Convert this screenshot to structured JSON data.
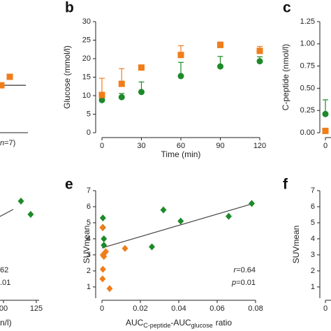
{
  "chart_data": [
    {
      "type": "scatter",
      "annotations": [
        [
          "n",
          "=7)"
        ]
      ],
      "xlim": [
        0,
        120
      ],
      "ylim": [
        0,
        30
      ],
      "reference_line": 12.8,
      "series": [
        {
          "color": "#f07d1a",
          "marker": "square",
          "x": [
            101.4,
            107.8
          ],
          "values": [
            12.8,
            15.1
          ]
        }
      ]
    },
    {
      "type": "errorbar",
      "letter": "b",
      "y_label": "Glucose (mmol/l)",
      "x_label": "Time (min)",
      "xlim": [
        0,
        120
      ],
      "ylim": [
        0,
        30
      ],
      "xticks": [
        0,
        30,
        60,
        90,
        120
      ],
      "yticks": [
        0,
        5,
        10,
        15,
        20,
        25,
        30
      ],
      "series": [
        {
          "color": "#1d8a2a",
          "marker": "circle",
          "x": [
            0,
            15,
            30,
            60,
            90,
            120
          ],
          "values": [
            8.8,
            9.6,
            11,
            15.3,
            17.9,
            19.3
          ],
          "errors": [
            1.5,
            1,
            2.7,
            3.7,
            2.7,
            1.2
          ]
        },
        {
          "color": "#f07d1a",
          "marker": "square",
          "x": [
            0,
            15,
            30,
            60,
            90,
            120
          ],
          "values": [
            10.2,
            13.2,
            17.6,
            21,
            23.7,
            22.1
          ],
          "errors": [
            4.5,
            4.1,
            0.3,
            2.5,
            0.8,
            1.2
          ]
        }
      ]
    },
    {
      "type": "errorbar",
      "letter": "c",
      "y_label": "C-peptide (nmol/l)",
      "xlim": [
        0,
        120
      ],
      "ylim": [
        0,
        1.25
      ],
      "xticks": [
        0
      ],
      "yticks": [
        {
          "value": 0,
          "label": "0.00"
        },
        0.25,
        {
          "value": 0.5,
          "label": "0.50"
        },
        0.75,
        {
          "value": 1,
          "label": "1.00"
        },
        1.25
      ],
      "series": [
        {
          "color": "#1d8a2a",
          "marker": "circle",
          "x": [
            0
          ],
          "values": [
            0.21
          ],
          "errors": [
            0.16
          ]
        },
        {
          "color": "#f07d1a",
          "marker": "square",
          "x": [
            0
          ],
          "values": [
            0.02
          ],
          "errors": [
            0.02
          ]
        }
      ]
    },
    {
      "type": "scatter",
      "x_label": "n/l)",
      "annotations": [
        [
          "62"
        ],
        [
          ".01"
        ]
      ],
      "xlim": [
        100,
        125
      ],
      "ylim": [
        0.3,
        7
      ],
      "xticks": [
        {
          "value": 100,
          "label": "00"
        },
        125
      ],
      "fit_x": [
        97.3,
        107.4
      ],
      "fit_y": [
        5.39,
        5.83
      ],
      "series": [
        {
          "color": "#1d8a2a",
          "marker": "diamond",
          "x": [
            113.3,
            120.7
          ],
          "values": [
            6.35,
            5.52
          ]
        }
      ]
    },
    {
      "type": "scatter",
      "letter": "e",
      "y_label": "SUVmean",
      "x_label": [
        "AUC",
        "C-peptide",
        "-AUC",
        "glucose",
        "ratio"
      ],
      "annotations": [
        [
          "r",
          "=0.64"
        ],
        [
          "p",
          "=0.01"
        ]
      ],
      "xlim": [
        0,
        0.08
      ],
      "ylim": [
        0.3,
        7
      ],
      "xticks": [
        0,
        0.02,
        0.04,
        0.06,
        0.08
      ],
      "yticks": [
        1,
        2,
        3,
        4,
        5,
        6,
        7
      ],
      "fit_x": [
        0,
        0.078
      ],
      "fit_y": [
        3.43,
        6.17
      ],
      "series": [
        {
          "color": "#1d8a2a",
          "marker": "diamond",
          "x": [
            0.0005,
            0.0005,
            0.001,
            0.001,
            0.026,
            0.032,
            0.041,
            0.066,
            0.078
          ],
          "values": [
            5.3,
            4.7,
            4.0,
            3.6,
            3.5,
            5.8,
            5.1,
            5.4,
            6.2
          ]
        },
        {
          "color": "#f07d1a",
          "marker": "diamond",
          "x": [
            0.0003,
            0.0005,
            0.001,
            0.0005,
            0.002,
            0.0003,
            0.004,
            0.012
          ],
          "values": [
            4.7,
            3.0,
            2.9,
            2.1,
            3.2,
            1.5,
            0.9,
            3.4
          ]
        }
      ]
    },
    {
      "type": "scatter",
      "letter": "f",
      "y_label": "SUVmean",
      "xlim": [
        0,
        0.08
      ],
      "ylim": [
        0.3,
        7
      ],
      "xticks": [
        0
      ],
      "yticks": [
        1,
        2,
        3,
        4,
        5,
        6,
        7
      ],
      "series": []
    }
  ]
}
